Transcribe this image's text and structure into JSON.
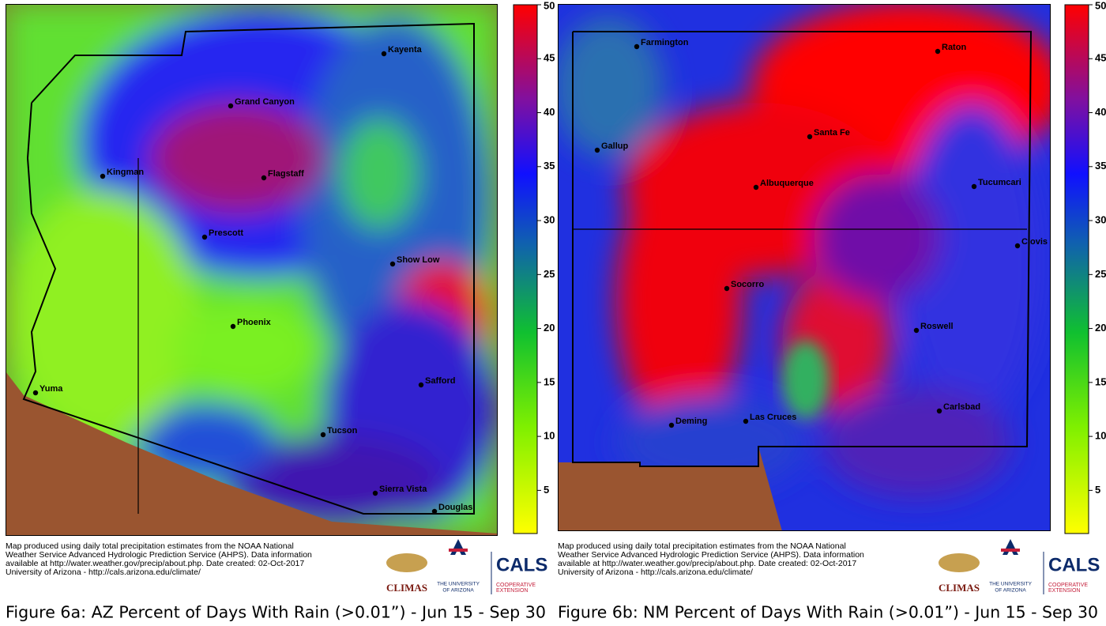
{
  "panels": [
    {
      "cities": [
        "Kayenta",
        "Grand Canyon",
        "Kingman",
        "Flagstaff",
        "Prescott",
        "Show Low",
        "Phoenix",
        "Yuma",
        "Safford",
        "Tucson",
        "Sierra Vista",
        "Douglas"
      ],
      "colorbar": {
        "lim": [
          1,
          50
        ],
        "ticks": [
          5,
          10,
          15,
          20,
          25,
          30,
          35,
          40,
          45,
          50
        ]
      },
      "credit": [
        "Map produced using daily total precipitation estimates from the NOAA National",
        "Weather Service Advanced Hydrologic Prediction Service (AHPS). Data information",
        "available at http://water.weather.gov/precip/about.php. Date created: 02-Oct-2017",
        "University of Arizona - http://cals.arizona.edu/climate/"
      ],
      "logos": [
        "CLIMAS",
        "THE UNIVERSITY",
        "OF ARIZONA",
        "CALS",
        "COOPERATIVE",
        "EXTENSION"
      ],
      "caption": "Figure 6a: AZ Percent of Days With Rain (>0.01”) - Jun 15 - Sep 30"
    },
    {
      "cities": [
        "Farmington",
        "Raton",
        "Gallup",
        "Santa Fe",
        "Albuquerque",
        "Tucumcari",
        "Clovis",
        "Socorro",
        "Roswell",
        "Carlsbad",
        "Deming",
        "Las Cruces"
      ],
      "colorbar": {
        "lim": [
          1,
          50
        ],
        "ticks": [
          5,
          10,
          15,
          20,
          25,
          30,
          35,
          40,
          45,
          50
        ]
      },
      "credit": [
        "Map produced using daily total precipitation estimates from the NOAA National",
        "Weather Service Advanced Hydrologic Prediction Service (AHPS). Data information",
        "available at http://water.weather.gov/precip/about.php. Date created: 02-Oct-2017",
        "University of Arizona - http://cals.arizona.edu/climate/"
      ],
      "logos": [
        "CLIMAS",
        "THE UNIVERSITY",
        "OF ARIZONA",
        "CALS",
        "COOPERATIVE",
        "EXTENSION"
      ],
      "caption": "Figure 6b: NM Percent of Days With Rain (>0.01”) - Jun 15 - Sep 30"
    }
  ]
}
